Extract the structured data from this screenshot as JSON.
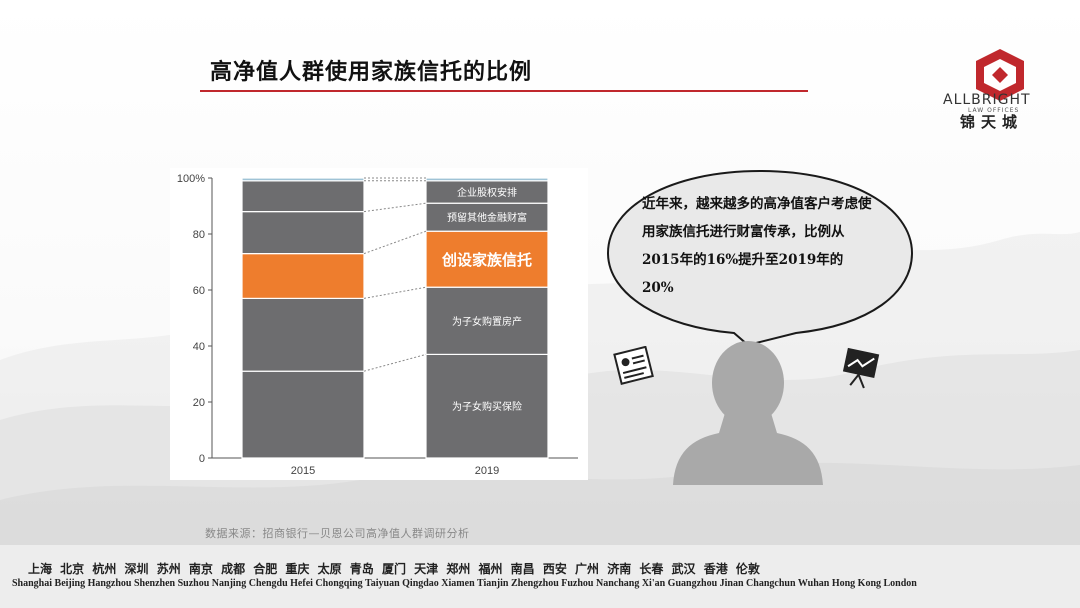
{
  "title": "高净值人群使用家族信托的比例",
  "logo": {
    "name": "ALLBRIGHT",
    "sub": "LAW OFFICES",
    "cn": "锦天城",
    "color": "#c0282d"
  },
  "bubble": {
    "text": "近年来，越来越多的高净值客户考虑使用家族信托进行财富传承，比例从2015年的16%提升至2019年的20%"
  },
  "source": "数据来源：招商银行—贝恩公司高净值人群调研分析",
  "cities_cn": "上海 北京 杭州 深圳 苏州 南京 成都 合肥 重庆 太原 青岛 厦门 天津 郑州 福州 南昌 西安 广州 济南 长春 武汉 香港 伦敦",
  "cities_en": "Shanghai Beijing Hangzhou Shenzhen Suzhou Nanjing Chengdu Hefei Chongqing Taiyuan Qingdao Xiamen Tianjin Zhengzhou Fuzhou Nanchang Xi'an Guangzhou Jinan Changchun Wuhan Hong Kong London",
  "icons": [
    "profile-card-icon",
    "presentation-chart-icon",
    "person-silhouette-icon"
  ],
  "chart_data": {
    "type": "bar",
    "stacked": true,
    "categories": [
      "2015",
      "2019"
    ],
    "y_ticks": [
      "0",
      "20",
      "40",
      "60",
      "80",
      "100%"
    ],
    "ylim": [
      0,
      100
    ],
    "series": [
      {
        "name": "为子女购买保险",
        "values": [
          31,
          37
        ],
        "color": "#6d6d6f",
        "label_2019": "为子女购买保险"
      },
      {
        "name": "为子女购置房产",
        "values": [
          26,
          24
        ],
        "color": "#6d6d6f",
        "label_2019": "为子女购置房产"
      },
      {
        "name": "创设家族信托",
        "values": [
          16,
          20
        ],
        "color": "#ee7d2d",
        "label_2019": "创设家族信托"
      },
      {
        "name": "预留其他金融财富",
        "values": [
          15,
          10
        ],
        "color": "#6d6d6f",
        "label_2019": "预留其他金融财富"
      },
      {
        "name": "企业股权安排",
        "values": [
          11,
          8
        ],
        "color": "#6d6d6f",
        "label_2019": "企业股权安排"
      },
      {
        "name": "",
        "values": [
          1,
          1
        ],
        "color": "#9fc3d6",
        "label_2019": ""
      }
    ],
    "highlight": "创设家族信托",
    "grid": false
  }
}
